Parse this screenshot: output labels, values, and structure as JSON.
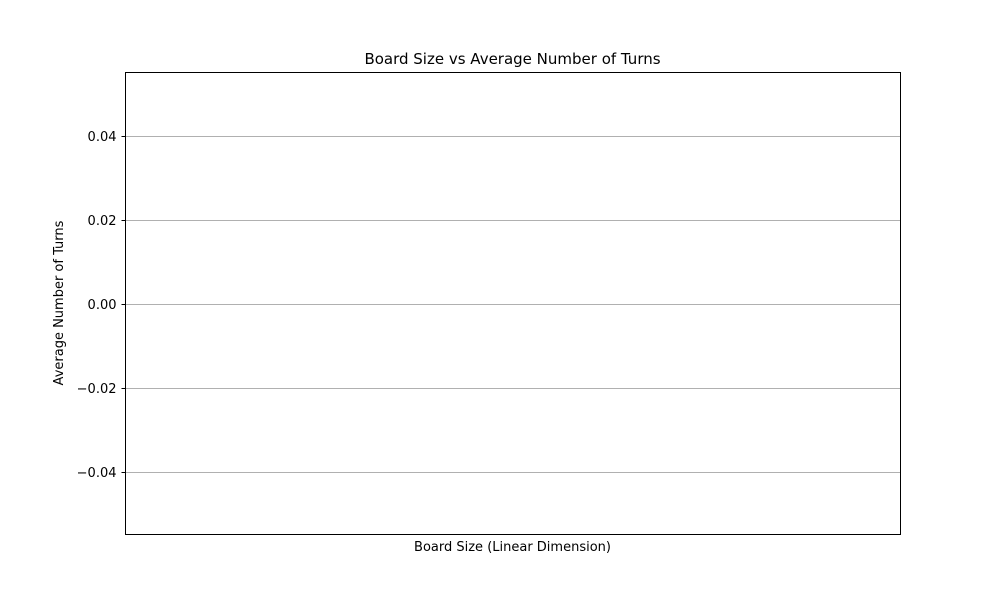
{
  "chart_data": {
    "type": "bar",
    "title": "Board Size vs Average Number of Turns",
    "xlabel": "Board Size (Linear Dimension)",
    "ylabel": "Average Number of Turns",
    "categories": [],
    "values": [],
    "ylim": [
      -0.055,
      0.055
    ],
    "yticks": [
      {
        "value": 0.04,
        "label": "0.04"
      },
      {
        "value": 0.02,
        "label": "0.02"
      },
      {
        "value": 0.0,
        "label": "0.00"
      },
      {
        "value": -0.02,
        "label": "−0.02"
      },
      {
        "value": -0.04,
        "label": "−0.04"
      }
    ],
    "grid": "horizontal",
    "grid_color": "#b0b0b0",
    "axis_color": "#000000"
  }
}
